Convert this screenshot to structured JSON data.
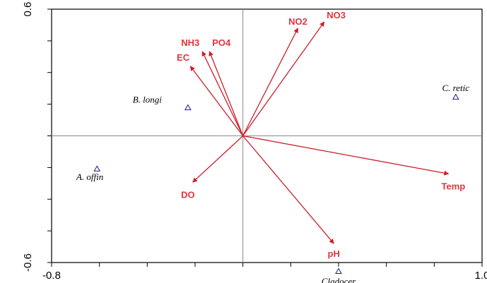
{
  "chart_data": {
    "type": "scatter",
    "subtype": "ordination-biplot",
    "title": "",
    "xlabel": "",
    "ylabel": "",
    "xlim": [
      -0.8,
      1.0
    ],
    "ylim": [
      -0.6,
      0.6
    ],
    "x_tick_labels": [
      {
        "value": -0.8,
        "text": "-0.8"
      },
      {
        "value": 1.0,
        "text": "1.0"
      }
    ],
    "y_tick_labels": [
      {
        "value": 0.6,
        "text": "0.6"
      },
      {
        "value": -0.6,
        "text": "-0.6"
      }
    ],
    "x_minor_ticks": [
      -0.6,
      -0.4,
      -0.2,
      0.0,
      0.2,
      0.4,
      0.6,
      0.8
    ],
    "y_minor_ticks": [
      0.45,
      0.3,
      0.15,
      0.0,
      -0.15,
      -0.3,
      -0.45
    ],
    "reference_lines": {
      "x": 0,
      "y": 0
    },
    "grid": false,
    "legend": "none",
    "colors": {
      "arrow": "#cc1f2a",
      "arrow_label": "#e0363c",
      "species_marker": "#1a1a8c",
      "species_label": "#000000",
      "reference_line": "#888888"
    },
    "environmental_vectors": [
      {
        "name": "NO2",
        "x": 0.23,
        "y": 0.51,
        "label_dx": 0.0,
        "label_dy": 0.03
      },
      {
        "name": "NO3",
        "x": 0.34,
        "y": 0.54,
        "label_dx": 0.05,
        "label_dy": 0.03
      },
      {
        "name": "NH3",
        "x": -0.17,
        "y": 0.4,
        "label_dx": -0.05,
        "label_dy": 0.04
      },
      {
        "name": "PO4",
        "x": -0.14,
        "y": 0.4,
        "label_dx": 0.05,
        "label_dy": 0.04
      },
      {
        "name": "EC",
        "x": -0.22,
        "y": 0.33,
        "label_dx": -0.03,
        "label_dy": 0.04
      },
      {
        "name": "DO",
        "x": -0.21,
        "y": -0.22,
        "label_dx": -0.02,
        "label_dy": -0.06
      },
      {
        "name": "Temp",
        "x": 0.86,
        "y": -0.18,
        "label_dx": 0.02,
        "label_dy": -0.06
      },
      {
        "name": "pH",
        "x": 0.38,
        "y": -0.51,
        "label_dx": 0.0,
        "label_dy": -0.05
      }
    ],
    "species": [
      {
        "name": "B. longi",
        "x": -0.23,
        "y": 0.135,
        "label_dx": -0.17,
        "label_dy": 0.035
      },
      {
        "name": "A. offin",
        "x": -0.61,
        "y": -0.155,
        "label_dx": -0.03,
        "label_dy": -0.04
      },
      {
        "name": "C. retic",
        "x": 0.89,
        "y": 0.185,
        "label_dx": 0.0,
        "label_dy": 0.04
      },
      {
        "name": "Cladocer",
        "x": 0.4,
        "y": -0.64,
        "label_dx": 0.0,
        "label_dy": -0.05
      }
    ]
  }
}
